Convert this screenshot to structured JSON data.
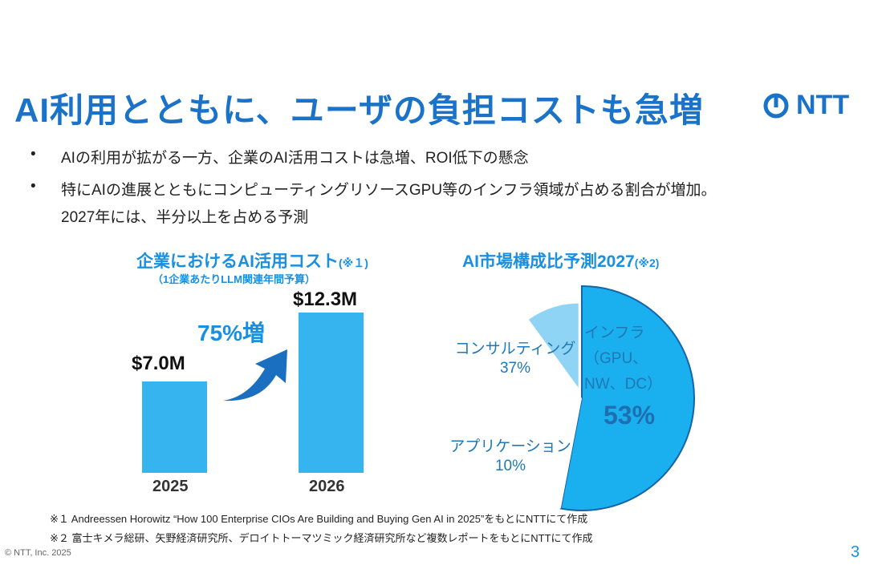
{
  "title": "AI利用とともに、ユーザの負担コストも急増",
  "logo_text": "NTT",
  "bullets": [
    "AIの利用が拡がる一方、企業のAI活用コストは急増、ROI低下の懸念",
    "特にAIの進展とともにコンピューティングリソースGPU等のインフラ領域が占める割合が増加。",
    "2027年には、半分以上を占める予測"
  ],
  "bullet_symbol": "•",
  "chart_data": [
    {
      "type": "bar",
      "title": "企業におけるAI活用コスト",
      "title_note": "(※１)",
      "subtitle": "（1企業あたりLLM関連年間予算）",
      "categories": [
        "2025",
        "2026"
      ],
      "values": [
        7.0,
        12.3
      ],
      "value_labels": [
        "$7.0M",
        "$12.3M"
      ],
      "unit": "$M",
      "annotation": "75%増",
      "color": "#35b4f0"
    },
    {
      "type": "pie",
      "title": "AI市場構成比予測2027",
      "title_note": "(※2)",
      "slices": [
        {
          "label": "インフラ（GPU、NW、DC）",
          "label_lines": [
            "インフラ",
            "（GPU、",
            "NW、DC）"
          ],
          "value": 53,
          "value_label": "53%",
          "color": "#1ab0f0"
        },
        {
          "label": "コンサルティング",
          "value": 37,
          "value_label": "37%",
          "color": "#ffffff"
        },
        {
          "label": "アプリケーション",
          "value": 10,
          "value_label": "10%",
          "color": "#8fd3f5"
        }
      ]
    }
  ],
  "footnotes": [
    "※１ Andreessen Horowitz “How 100 Enterprise CIOs Are  Building and Buying Gen AI in 2025”をもとにNTTにて作成",
    "※２ 富士キメラ総研、矢野経済研究所、デロイトトーマツミック経済研究所など複数レポートをもとにNTTにて作成"
  ],
  "copyright": "© NTT, Inc.  2025",
  "page_number": "3"
}
